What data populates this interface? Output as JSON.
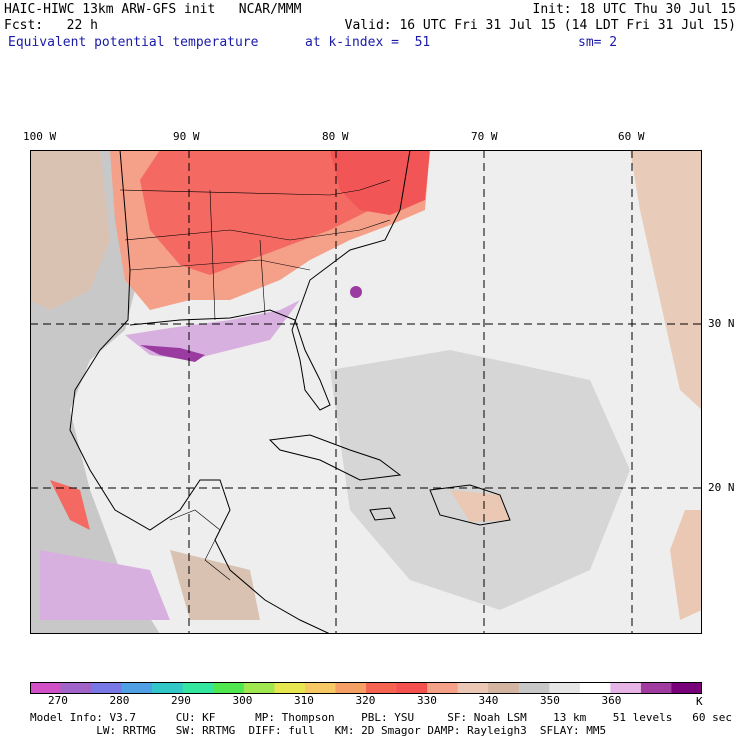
{
  "header": {
    "line1_left": "HAIC-HIWC 13km ARW-GFS init   NCAR/MMM",
    "line1_right": "Init: 18 UTC Thu 30 Jul 15",
    "line2_left": "Fcst:   22 h",
    "line2_right": "Valid: 16 UTC Fri 31 Jul 15 (14 LDT Fri 31 Jul 15)",
    "field_name": "Equivalent potential temperature",
    "level": "at k-index =  51",
    "smooth": "sm= 2"
  },
  "map": {
    "lon_labels": [
      "100 W",
      "90 W",
      "80 W",
      "70 W",
      "60 W"
    ],
    "lat_labels": [
      "30 N",
      "20 N"
    ],
    "colors": {
      "background": "#eeeeee",
      "land_warm": "#f5a089",
      "land_hot": "#f45f5f",
      "tan": "#eac8b4",
      "grey": "#c8c8c8",
      "purple_light": "#d8b0e0",
      "purple_dark": "#9b3aa0"
    }
  },
  "colorbar": {
    "colors": [
      "#d050c8",
      "#a064c8",
      "#7878e6",
      "#50a0e6",
      "#32c8c8",
      "#32e6a0",
      "#50e650",
      "#a0e650",
      "#e6e650",
      "#f5c864",
      "#f5a064",
      "#f56450",
      "#f55050",
      "#f5a089",
      "#eac8b4",
      "#d2b4a0",
      "#c8c8c8",
      "#e6e6e6",
      "#ffffff",
      "#e6b4e6",
      "#a03ca0",
      "#780078"
    ],
    "labels": [
      "270",
      "280",
      "290",
      "300",
      "310",
      "320",
      "330",
      "340",
      "350",
      "360",
      "K"
    ]
  },
  "footer": {
    "line1": "Model Info: V3.7      CU: KF      MP: Thompson    PBL: YSU     SF: Noah LSM    13 km    51 levels   60 sec",
    "line2": "          LW: RRTMG   SW: RRTMG  DIFF: full   KM: 2D Smagor DAMP: Rayleigh3  SFLAY: MM5"
  }
}
